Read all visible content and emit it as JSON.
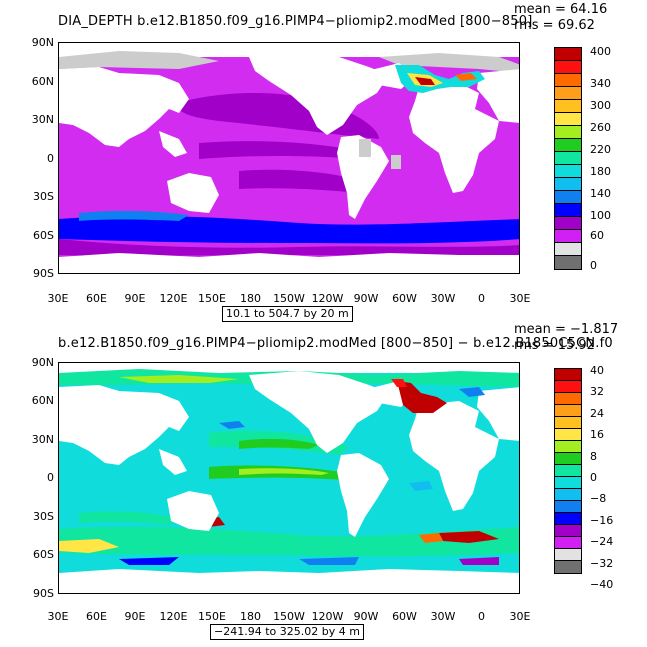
{
  "panels": [
    {
      "title": "DIA_DEPTH  b.e12.B1850.f09_g16.PIMP4−pliomip2.modMed  [800−850]",
      "mean": "mean = 64.16",
      "rms": "rms = 69.62",
      "range": "10.1 to 504.7 by 20 m",
      "lat_labels": [
        "90N",
        "60N",
        "30N",
        "0",
        "30S",
        "60S",
        "90S"
      ],
      "lon_labels": [
        "30E",
        "60E",
        "90E",
        "120E",
        "150E",
        "180",
        "150W",
        "120W",
        "90W",
        "60W",
        "30W",
        "0",
        "30E"
      ],
      "colorbar": {
        "colors": [
          "#c00000",
          "#ff1010",
          "#ff6a00",
          "#ff9e1a",
          "#ffc020",
          "#ffe646",
          "#a2ee20",
          "#20cc20",
          "#10e6a0",
          "#10dcdc",
          "#10bef0",
          "#1080f0",
          "#0000ff",
          "#a000c8",
          "#d220f4",
          "#e2e2e2",
          "#707070"
        ],
        "labels": [
          "400",
          "340",
          "300",
          "260",
          "220",
          "180",
          "140",
          "100",
          "60",
          "0"
        ]
      }
    },
    {
      "title": "b.e12.B1850.f09_g16.PIMP4−pliomip2.modMed  [800−850]  −  b.e12.B1850C5CN.f0",
      "mean": "mean = −1.817",
      "rms": "rms = 15.92",
      "range": "−241.94 to 325.02 by 4 m",
      "lat_labels": [
        "90N",
        "60N",
        "30N",
        "0",
        "30S",
        "60S",
        "90S"
      ],
      "lon_labels": [
        "30E",
        "60E",
        "90E",
        "120E",
        "150E",
        "180",
        "150W",
        "120W",
        "90W",
        "60W",
        "30W",
        "0",
        "30E"
      ],
      "colorbar": {
        "colors": [
          "#c00000",
          "#ff1010",
          "#ff6a00",
          "#ff9e1a",
          "#ffc020",
          "#ffe646",
          "#a2ee20",
          "#20cc20",
          "#10e6a0",
          "#10dcdc",
          "#10bef0",
          "#1080f0",
          "#0000ff",
          "#a000c8",
          "#d220f4",
          "#e2e2e2",
          "#707070"
        ],
        "labels": [
          "40",
          "32",
          "24",
          "16",
          "8",
          "0",
          "−8",
          "−16",
          "−24",
          "−32",
          "−40"
        ]
      }
    }
  ]
}
